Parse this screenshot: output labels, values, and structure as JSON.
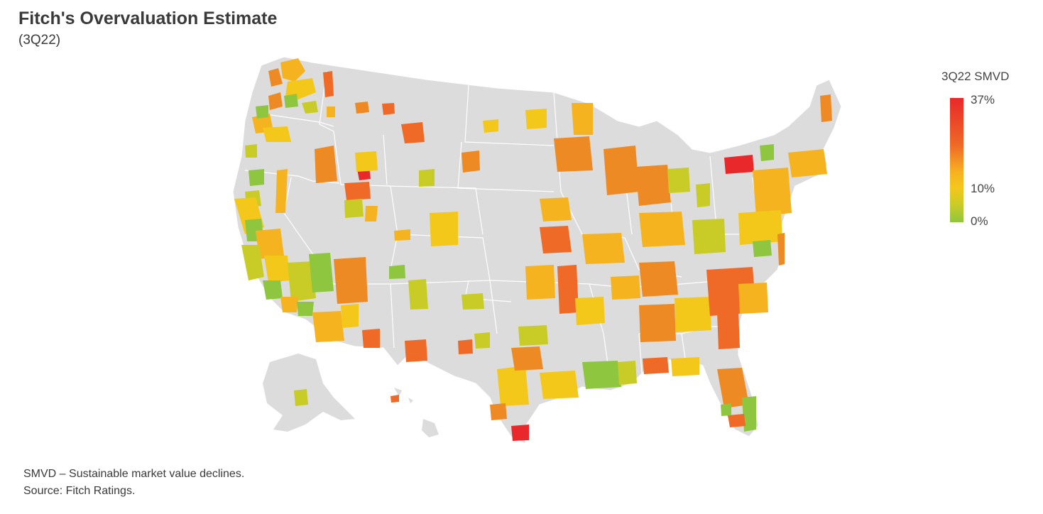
{
  "header": {
    "title": "Fitch's Overvaluation Estimate",
    "subtitle": "(3Q22)"
  },
  "legend": {
    "title": "3Q22 SMVD",
    "max_label": "37%",
    "mid_label": "10%",
    "min_label": "0%",
    "colors": {
      "high": "#e8282a",
      "upper": "#ee6a26",
      "mid": "#f6b320",
      "lower": "#c9cc26",
      "low": "#8ec63f"
    }
  },
  "map": {
    "type": "choropleth",
    "region": "United States counties / MSAs",
    "base_color": "#dcdcdc",
    "border_color": "#ffffff"
  },
  "footer": {
    "note": "SMVD – Sustainable market value declines.",
    "source": "Source: Fitch Ratings."
  }
}
